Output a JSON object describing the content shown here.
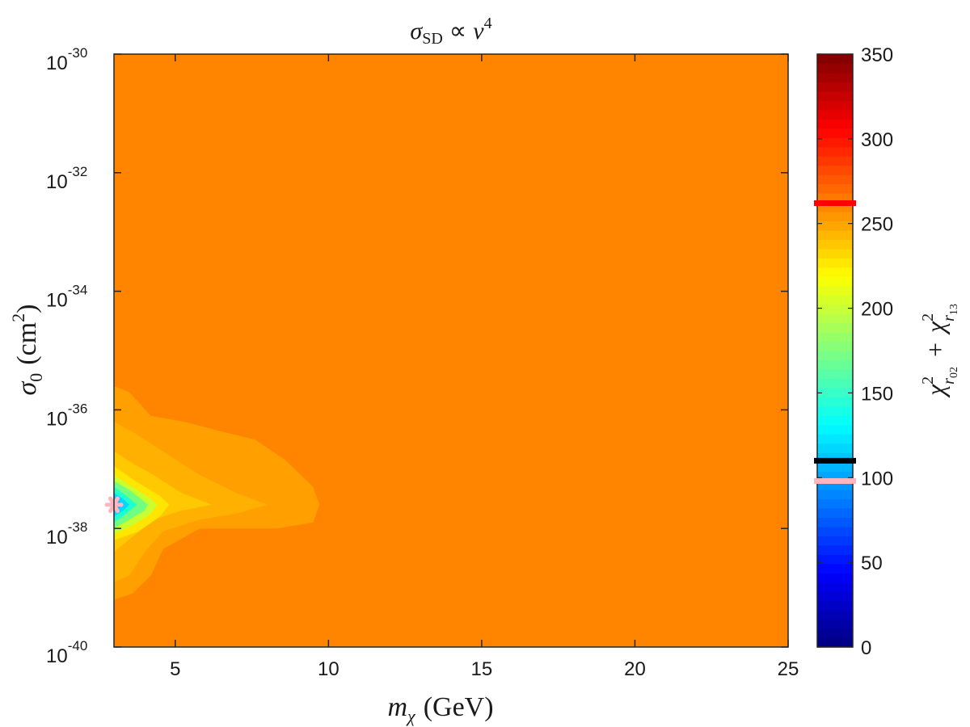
{
  "chart_data": {
    "type": "heatmap",
    "title": {
      "sigma": "σ",
      "sub": "SD",
      "prop": "∝",
      "v": "v",
      "exp": "4"
    },
    "xlabel": {
      "m": "m",
      "sub": "χ",
      "unit": "(GeV)"
    },
    "ylabel": {
      "sigma": "σ",
      "sub": "0",
      "unit_open": "(cm",
      "exp": "2",
      "unit_close": ")"
    },
    "colorbar_label": {
      "chi": "χ",
      "exp": "2",
      "r": "r",
      "sub1": "02",
      "plus": "+",
      "sub2": "13"
    },
    "xlim": [
      3,
      25
    ],
    "ylim_log10": [
      -40,
      -30
    ],
    "xticks": [
      5,
      10,
      15,
      20,
      25
    ],
    "yticks": [
      {
        "base": "10",
        "exp": "-30",
        "log": -30
      },
      {
        "base": "10",
        "exp": "-32",
        "log": -32
      },
      {
        "base": "10",
        "exp": "-34",
        "log": -34
      },
      {
        "base": "10",
        "exp": "-36",
        "log": -36
      },
      {
        "base": "10",
        "exp": "-38",
        "log": -38
      },
      {
        "base": "10",
        "exp": "-40",
        "log": -40
      }
    ],
    "colorbar": {
      "range": [
        0,
        350
      ],
      "ticks": [
        0,
        50,
        100,
        150,
        200,
        250,
        300,
        350
      ],
      "colormap": "jet",
      "markers": [
        {
          "value": 262,
          "color": "#ff0000"
        },
        {
          "value": 110,
          "color": "#000000"
        },
        {
          "value": 98,
          "color": "#ffb6c1"
        }
      ]
    },
    "background_value": 261,
    "contours": [
      {
        "value": 256,
        "color": "#ff9f00",
        "points": [
          [
            3,
            -35.6
          ],
          [
            3.5,
            -35.7
          ],
          [
            4.2,
            -36.1
          ],
          [
            5.3,
            -36.2
          ],
          [
            6.4,
            -36.35
          ],
          [
            7.6,
            -36.5
          ],
          [
            8.6,
            -36.85
          ],
          [
            9.5,
            -37.3
          ],
          [
            9.7,
            -37.6
          ],
          [
            9.5,
            -37.9
          ],
          [
            8.3,
            -38.0
          ],
          [
            7.0,
            -38.0
          ],
          [
            5.8,
            -38.0
          ],
          [
            4.6,
            -38.35
          ],
          [
            4.2,
            -38.8
          ],
          [
            3.6,
            -39.1
          ],
          [
            3,
            -39.2
          ]
        ]
      },
      {
        "value": 250,
        "color": "#ffb000",
        "points": [
          [
            3,
            -36.2
          ],
          [
            3.7,
            -36.4
          ],
          [
            4.6,
            -36.7
          ],
          [
            5.8,
            -37.1
          ],
          [
            7.0,
            -37.4
          ],
          [
            8.0,
            -37.6
          ],
          [
            7.0,
            -37.75
          ],
          [
            5.8,
            -37.85
          ],
          [
            4.6,
            -38.05
          ],
          [
            4.0,
            -38.4
          ],
          [
            3.5,
            -38.8
          ],
          [
            3,
            -38.9
          ]
        ]
      },
      {
        "value": 240,
        "color": "#ffc800",
        "points": [
          [
            3,
            -36.7
          ],
          [
            3.6,
            -36.9
          ],
          [
            4.3,
            -37.1
          ],
          [
            5.2,
            -37.4
          ],
          [
            6.2,
            -37.6
          ],
          [
            5.2,
            -37.7
          ],
          [
            4.3,
            -37.85
          ],
          [
            3.7,
            -38.1
          ],
          [
            3,
            -38.4
          ]
        ]
      },
      {
        "value": 220,
        "color": "#ffe600",
        "points": [
          [
            3,
            -36.95
          ],
          [
            3.7,
            -37.2
          ],
          [
            4.5,
            -37.45
          ],
          [
            4.8,
            -37.6
          ],
          [
            4.5,
            -37.8
          ],
          [
            3.8,
            -38.05
          ],
          [
            3,
            -38.2
          ]
        ]
      },
      {
        "value": 195,
        "color": "#c8ff30",
        "points": [
          [
            3,
            -37.1
          ],
          [
            3.6,
            -37.3
          ],
          [
            4.2,
            -37.5
          ],
          [
            4.4,
            -37.6
          ],
          [
            4.2,
            -37.75
          ],
          [
            3.6,
            -37.95
          ],
          [
            3,
            -38.1
          ]
        ]
      },
      {
        "value": 170,
        "color": "#70ff80",
        "points": [
          [
            3,
            -37.2
          ],
          [
            3.5,
            -37.35
          ],
          [
            4.0,
            -37.55
          ],
          [
            4.1,
            -37.6
          ],
          [
            4.0,
            -37.7
          ],
          [
            3.5,
            -37.85
          ],
          [
            3,
            -38.0
          ]
        ]
      },
      {
        "value": 150,
        "color": "#20ffd0",
        "points": [
          [
            3,
            -37.3
          ],
          [
            3.4,
            -37.45
          ],
          [
            3.75,
            -37.6
          ],
          [
            3.4,
            -37.75
          ],
          [
            3,
            -37.9
          ]
        ]
      },
      {
        "value": 128,
        "color": "#00d8ff",
        "points": [
          [
            3,
            -37.4
          ],
          [
            3.3,
            -37.5
          ],
          [
            3.5,
            -37.6
          ],
          [
            3.3,
            -37.7
          ],
          [
            3,
            -37.8
          ]
        ]
      },
      {
        "value": 112,
        "color": "#00b8ff",
        "points": [
          [
            3,
            -37.47
          ],
          [
            3.2,
            -37.55
          ],
          [
            3.3,
            -37.6
          ],
          [
            3.2,
            -37.65
          ],
          [
            3,
            -37.73
          ]
        ]
      }
    ],
    "best_fit_marker": {
      "x": 3,
      "log10y": -37.6,
      "color": "#ffb6c1"
    }
  }
}
